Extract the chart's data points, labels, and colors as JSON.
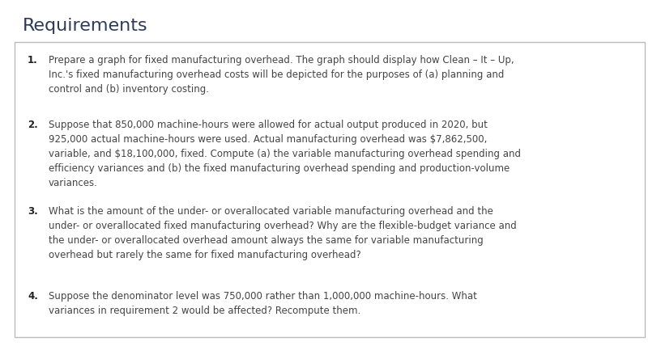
{
  "title": "Requirements",
  "title_fontsize": 16,
  "title_color": "#2d3a5c",
  "background_color": "#ffffff",
  "box_background": "#ffffff",
  "box_edge_color": "#bbbbbb",
  "text_color": "#444444",
  "number_color": "#222222",
  "font_size": 8.5,
  "items": [
    {
      "number": "1.",
      "text": "Prepare a graph for fixed manufacturing overhead. The graph should display how Clean – It – Up,\nInc.'s fixed manufacturing overhead costs will be depicted for the purposes of (a) planning and\ncontrol and (b) inventory costing."
    },
    {
      "number": "2.",
      "text": "Suppose that 850,000 machine-hours were allowed for actual output produced in 2020, but\n925,000 actual machine-hours were used. Actual manufacturing overhead was $7,862,500,\nvariable, and $18,100,000, fixed. Compute (a) the variable manufacturing overhead spending and\nefficiency variances and (b) the fixed manufacturing overhead spending and production-volume\nvariances."
    },
    {
      "number": "3.",
      "text": "What is the amount of the under- or overallocated variable manufacturing overhead and the\nunder- or overallocated fixed manufacturing overhead? Why are the flexible-budget variance and\nthe under- or overallocated overhead amount always the same for variable manufacturing\noverhead but rarely the same for fixed manufacturing overhead?"
    },
    {
      "number": "4.",
      "text": "Suppose the denominator level was 750,000 rather than 1,000,000 machine-hours. What\nvariances in requirement 2 would be affected? Recompute them."
    }
  ]
}
